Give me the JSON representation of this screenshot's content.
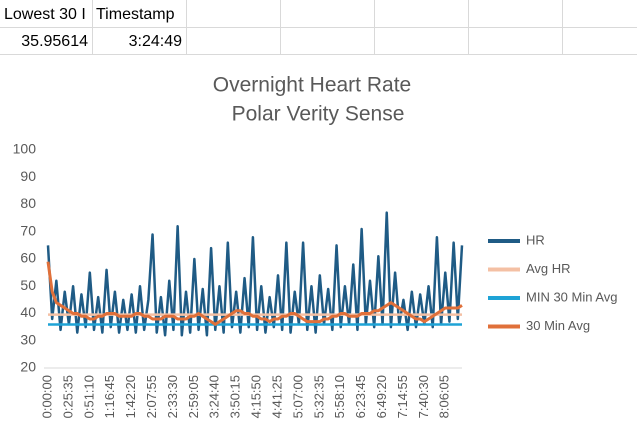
{
  "sheet": {
    "rows": [
      [
        "Lowest 30 I",
        "Timestamp"
      ],
      [
        35.95614,
        "3:24:49"
      ]
    ]
  },
  "chart_data": {
    "type": "line",
    "title": [
      "Overnight Heart Rate",
      "Polar Verity Sense"
    ],
    "categories": [
      "0:00:00",
      null,
      null,
      null,
      null,
      "0:25:35",
      null,
      null,
      null,
      null,
      "0:51:10",
      null,
      null,
      null,
      null,
      "1:16:45",
      null,
      null,
      null,
      null,
      "1:42:20",
      null,
      null,
      null,
      null,
      "2:07:55",
      null,
      null,
      null,
      null,
      "2:33:30",
      null,
      null,
      null,
      null,
      "2:59:05",
      null,
      null,
      null,
      null,
      "3:24:40",
      null,
      null,
      null,
      null,
      "3:50:15",
      null,
      null,
      null,
      null,
      "4:15:50",
      null,
      null,
      null,
      null,
      "4:41:25",
      null,
      null,
      null,
      null,
      "5:07:00",
      null,
      null,
      null,
      null,
      "5:32:35",
      null,
      null,
      null,
      null,
      "5:58:10",
      null,
      null,
      null,
      null,
      "6:23:45",
      null,
      null,
      null,
      null,
      "6:49:20",
      null,
      null,
      null,
      null,
      "7:14:55",
      null,
      null,
      null,
      null,
      "7:40:30",
      null,
      null,
      null,
      null,
      "8:06:05",
      null,
      null,
      null,
      null
    ],
    "ylim": [
      20,
      100
    ],
    "yticks": [
      20,
      30,
      40,
      50,
      60,
      70,
      80,
      90,
      100
    ],
    "grid": false,
    "legend": "right",
    "series": [
      {
        "name": "HR",
        "color": "#1f5b85",
        "width": 2.5,
        "values": [
          65,
          38,
          52,
          34,
          48,
          36,
          50,
          33,
          47,
          35,
          55,
          34,
          46,
          33,
          56,
          35,
          48,
          33,
          45,
          34,
          47,
          33,
          50,
          34,
          45,
          69,
          33,
          46,
          32,
          52,
          34,
          72,
          32,
          48,
          33,
          60,
          34,
          49,
          32,
          64,
          34,
          50,
          33,
          66,
          35,
          48,
          33,
          53,
          35,
          68,
          34,
          50,
          33,
          46,
          35,
          54,
          34,
          66,
          33,
          48,
          36,
          66,
          34,
          50,
          33,
          54,
          36,
          49,
          34,
          65,
          35,
          50,
          36,
          58,
          34,
          71,
          36,
          52,
          35,
          61,
          36,
          77,
          35,
          55,
          36,
          45,
          34,
          48,
          35,
          47,
          36,
          50,
          35,
          68,
          36,
          55,
          37,
          66,
          38,
          65
        ]
      },
      {
        "name": "Avg HR",
        "color": "#f4c0a4",
        "width": 2.5,
        "values": [
          39.6,
          39.6,
          39.6,
          39.6,
          39.6,
          39.6,
          39.6,
          39.6,
          39.6,
          39.6,
          39.6,
          39.6,
          39.6,
          39.6,
          39.6,
          39.6,
          39.6,
          39.6,
          39.6,
          39.6,
          39.6,
          39.6,
          39.6,
          39.6,
          39.6,
          39.6,
          39.6,
          39.6,
          39.6,
          39.6,
          39.6,
          39.6,
          39.6,
          39.6,
          39.6,
          39.6,
          39.6,
          39.6,
          39.6,
          39.6,
          39.6,
          39.6,
          39.6,
          39.6,
          39.6,
          39.6,
          39.6,
          39.6,
          39.6,
          39.6,
          39.6,
          39.6,
          39.6,
          39.6,
          39.6,
          39.6,
          39.6,
          39.6,
          39.6,
          39.6,
          39.6,
          39.6,
          39.6,
          39.6,
          39.6,
          39.6,
          39.6,
          39.6,
          39.6,
          39.6,
          39.6,
          39.6,
          39.6,
          39.6,
          39.6,
          39.6,
          39.6,
          39.6,
          39.6,
          39.6,
          39.6,
          39.6,
          39.6,
          39.6,
          39.6,
          39.6,
          39.6,
          39.6,
          39.6,
          39.6,
          39.6,
          39.6,
          39.6,
          39.6,
          39.6,
          39.6,
          39.6,
          39.6,
          39.6,
          39.6
        ]
      },
      {
        "name": "MIN 30 Min Avg",
        "color": "#1ea3d6",
        "width": 2.5,
        "values": [
          35.96,
          35.96,
          35.96,
          35.96,
          35.96,
          35.96,
          35.96,
          35.96,
          35.96,
          35.96,
          35.96,
          35.96,
          35.96,
          35.96,
          35.96,
          35.96,
          35.96,
          35.96,
          35.96,
          35.96,
          35.96,
          35.96,
          35.96,
          35.96,
          35.96,
          35.96,
          35.96,
          35.96,
          35.96,
          35.96,
          35.96,
          35.96,
          35.96,
          35.96,
          35.96,
          35.96,
          35.96,
          35.96,
          35.96,
          35.96,
          35.96,
          35.96,
          35.96,
          35.96,
          35.96,
          35.96,
          35.96,
          35.96,
          35.96,
          35.96,
          35.96,
          35.96,
          35.96,
          35.96,
          35.96,
          35.96,
          35.96,
          35.96,
          35.96,
          35.96,
          35.96,
          35.96,
          35.96,
          35.96,
          35.96,
          35.96,
          35.96,
          35.96,
          35.96,
          35.96,
          35.96,
          35.96,
          35.96,
          35.96,
          35.96,
          35.96,
          35.96,
          35.96,
          35.96,
          35.96,
          35.96,
          35.96,
          35.96,
          35.96,
          35.96,
          35.96,
          35.96,
          35.96,
          35.96,
          35.96,
          35.96,
          35.96,
          35.96,
          35.96,
          35.96,
          35.96,
          35.96,
          35.96,
          35.96,
          35.96
        ]
      },
      {
        "name": "30 Min Avg",
        "color": "#e0703a",
        "width": 3,
        "values": [
          59,
          48,
          44,
          43,
          42,
          41,
          40,
          40,
          39,
          39,
          38,
          38,
          39,
          39,
          40,
          40,
          40,
          39,
          39,
          39,
          39,
          40,
          40,
          39,
          39,
          38,
          38,
          38,
          39,
          39,
          39,
          38,
          38,
          38,
          39,
          39,
          40,
          39,
          38,
          37,
          36,
          37,
          38,
          39,
          40,
          41,
          41,
          40,
          40,
          39,
          39,
          38,
          38,
          37,
          38,
          38,
          39,
          39,
          40,
          40,
          39,
          38,
          37,
          37,
          37,
          37,
          38,
          38,
          39,
          39,
          40,
          40,
          39,
          39,
          39,
          40,
          40,
          40,
          41,
          41,
          42,
          43,
          44,
          43,
          42,
          41,
          40,
          39,
          38,
          38,
          37,
          38,
          39,
          40,
          41,
          42,
          42,
          42,
          42,
          43
        ]
      }
    ]
  }
}
